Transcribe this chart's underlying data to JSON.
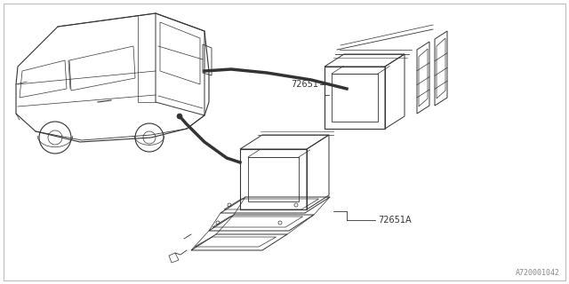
{
  "bg_color": "#ffffff",
  "diagram_color": "#333333",
  "label_72651": "72651",
  "label_72651A": "72651A",
  "part_number": "A720001042",
  "fig_width": 6.4,
  "fig_height": 3.2,
  "dpi": 100
}
